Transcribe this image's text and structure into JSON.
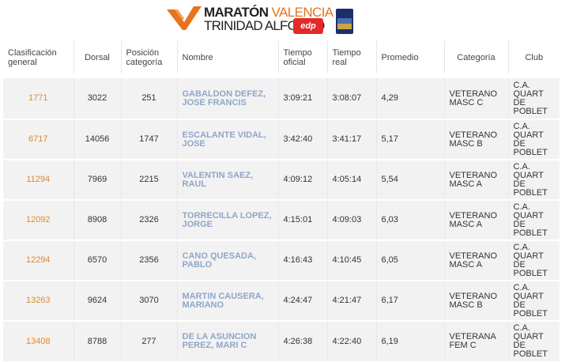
{
  "brand": {
    "line1_a": "MARATÓN",
    "line1_b": "VALENCIA",
    "line2": "TRINIDAD ALFONSO",
    "edp": "edp",
    "colors": {
      "orange": "#e8731c",
      "dark": "#222222",
      "red": "#e32a2a",
      "iaaf_blue": "#1b2f6b"
    },
    "icons": [
      "v-logo-icon",
      "iaaf-label-icon"
    ]
  },
  "table": {
    "headers": {
      "clasificacion": [
        "Clasificación",
        "general"
      ],
      "dorsal": "Dorsal",
      "posicion": [
        "Posición",
        "categoría"
      ],
      "nombre": "Nombre",
      "tiempo_oficial": [
        "Tiempo",
        "oficial"
      ],
      "tiempo_real": [
        "Tiempo",
        "real"
      ],
      "promedio": "Promedio",
      "categoria": "Categoría",
      "club": "Club"
    },
    "rows": [
      {
        "clasificacion": "1771",
        "dorsal": "3022",
        "posicion": "251",
        "nombre": [
          "GABALDON DEFEZ,",
          "JOSE FRANCIS"
        ],
        "tiempo_oficial": "3:09:21",
        "tiempo_real": "3:08:07",
        "promedio": "4,29",
        "categoria": [
          "VETERANO",
          "MASC C"
        ],
        "club": [
          "C.A.",
          "QUART",
          "DE",
          "POBLET"
        ]
      },
      {
        "clasificacion": "6717",
        "dorsal": "14056",
        "posicion": "1747",
        "nombre": [
          "ESCALANTE VIDAL,",
          "JOSE"
        ],
        "tiempo_oficial": "3:42:40",
        "tiempo_real": "3:41:17",
        "promedio": "5,17",
        "categoria": [
          "VETERANO",
          "MASC B"
        ],
        "club": [
          "C.A.",
          "QUART",
          "DE",
          "POBLET"
        ]
      },
      {
        "clasificacion": "11294",
        "dorsal": "7969",
        "posicion": "2215",
        "nombre": [
          "VALENTIN SAEZ,",
          "RAUL"
        ],
        "tiempo_oficial": "4:09:12",
        "tiempo_real": "4:05:14",
        "promedio": "5,54",
        "categoria": [
          "VETERANO",
          "MASC A"
        ],
        "club": [
          "C.A.",
          "QUART",
          "DE",
          "POBLET"
        ]
      },
      {
        "clasificacion": "12092",
        "dorsal": "8908",
        "posicion": "2326",
        "nombre": [
          "TORRECILLA LOPEZ,",
          "JORGE"
        ],
        "tiempo_oficial": "4:15:01",
        "tiempo_real": "4:09:03",
        "promedio": "6,03",
        "categoria": [
          "VETERANO",
          "MASC A"
        ],
        "club": [
          "C.A.",
          "QUART",
          "DE",
          "POBLET"
        ]
      },
      {
        "clasificacion": "12294",
        "dorsal": "6570",
        "posicion": "2356",
        "nombre": [
          "CANO QUESADA,",
          "PABLO"
        ],
        "tiempo_oficial": "4:16:43",
        "tiempo_real": "4:10:45",
        "promedio": "6,05",
        "categoria": [
          "VETERANO",
          "MASC A"
        ],
        "club": [
          "C.A.",
          "QUART",
          "DE",
          "POBLET"
        ]
      },
      {
        "clasificacion": "13263",
        "dorsal": "9624",
        "posicion": "3070",
        "nombre": [
          "MARTIN CAUSERA,",
          "MARIANO"
        ],
        "tiempo_oficial": "4:24:47",
        "tiempo_real": "4:21:47",
        "promedio": "6,17",
        "categoria": [
          "VETERANO",
          "MASC B"
        ],
        "club": [
          "C.A.",
          "QUART",
          "DE",
          "POBLET"
        ]
      },
      {
        "clasificacion": "13408",
        "dorsal": "8788",
        "posicion": "277",
        "nombre": [
          "DE LA ASUNCION",
          "PEREZ, MARI C"
        ],
        "tiempo_oficial": "4:26:38",
        "tiempo_real": "4:22:40",
        "promedio": "6,19",
        "categoria": [
          "VETERANA",
          "FEM C"
        ],
        "club": [
          "C.A.",
          "QUART",
          "DE",
          "POBLET"
        ]
      }
    ],
    "colors": {
      "position_link": "#e0892a",
      "name_link": "#8fa6c7",
      "row_bg": "#f2f2f2",
      "header_rule": "#555555"
    }
  }
}
